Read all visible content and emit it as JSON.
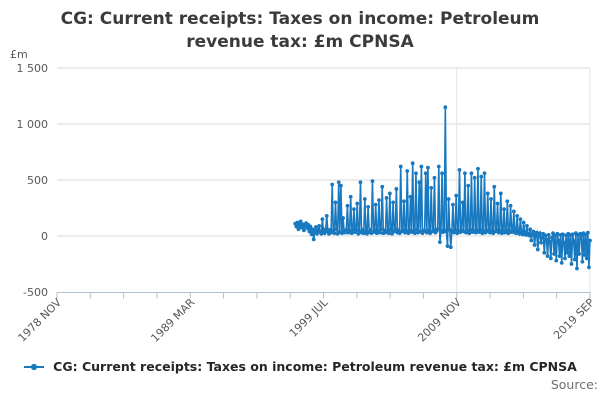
{
  "title": "CG: Current receipts: Taxes on income: Petroleum revenue tax: £m CPNSA",
  "unit_label": "£m",
  "legend": {
    "label": "CG: Current receipts: Taxes on income: Petroleum revenue tax: £m CPNSA"
  },
  "source_label": "Source:",
  "colors": {
    "series": "#1879c0",
    "grid": "#d9d9d9",
    "vgrid": "#e4e4e4",
    "axis": "#b2c0ce",
    "text": "#3b3b3b",
    "tick_text": "#57585a"
  },
  "chart_data": {
    "type": "line",
    "title": "CG: Current receipts: Taxes on income: Petroleum revenue tax: £m CPNSA",
    "xlabel": "",
    "ylabel": "£m",
    "ylim": [
      -500,
      1500
    ],
    "grid": "horizontal",
    "legend_position": "bottom",
    "marker": "circle",
    "yticks": [
      {
        "value": 1500,
        "label": "1 500"
      },
      {
        "value": 1000,
        "label": "1 000"
      },
      {
        "value": 500,
        "label": "500"
      },
      {
        "value": 0,
        "label": "0"
      },
      {
        "value": -500,
        "label": "-500"
      }
    ],
    "axis_start_month": "1978-11",
    "axis_end_month": "2019-09",
    "xticklabels": [
      "1978 NOV",
      "1989 MAR",
      "1999 JUL",
      "2009 NOV",
      "2019 SEP"
    ],
    "minor_ticks_between_labels": 3,
    "vgrid_ticks": [
      12,
      16
    ],
    "series": [
      {
        "name": "CG: Current receipts: Taxes on income: Petroleum revenue tax: £m CPNSA",
        "start_month": "1997-02",
        "frequency": "monthly",
        "values": [
          110,
          85,
          120,
          60,
          100,
          130,
          75,
          105,
          50,
          95,
          115,
          70,
          100,
          40,
          85,
          15,
          60,
          -30,
          45,
          80,
          20,
          55,
          90,
          35,
          20,
          150,
          45,
          25,
          60,
          180,
          40,
          20,
          55,
          30,
          460,
          45,
          25,
          300,
          60,
          20,
          480,
          35,
          450,
          25,
          160,
          40,
          30,
          55,
          270,
          30,
          45,
          350,
          25,
          60,
          240,
          35,
          50,
          290,
          20,
          40,
          480,
          30,
          55,
          25,
          330,
          45,
          20,
          260,
          35,
          55,
          25,
          490,
          35,
          50,
          280,
          25,
          45,
          320,
          30,
          60,
          440,
          25,
          50,
          30,
          340,
          45,
          25,
          380,
          55,
          20,
          300,
          40,
          60,
          420,
          30,
          50,
          25,
          620,
          40,
          55,
          310,
          30,
          45,
          580,
          25,
          50,
          350,
          35,
          650,
          45,
          25,
          560,
          55,
          30,
          480,
          40,
          620,
          25,
          50,
          45,
          560,
          30,
          610,
          50,
          25,
          430,
          40,
          55,
          520,
          30,
          45,
          60,
          620,
          -55,
          45,
          560,
          35,
          50,
          1150,
          40,
          -90,
          330,
          55,
          -100,
          45,
          280,
          30,
          55,
          360,
          25,
          45,
          590,
          35,
          50,
          300,
          40,
          560,
          30,
          50,
          450,
          25,
          55,
          560,
          35,
          45,
          520,
          30,
          50,
          600,
          35,
          55,
          530,
          25,
          45,
          560,
          30,
          50,
          380,
          40,
          30,
          330,
          50,
          25,
          440,
          40,
          55,
          290,
          30,
          45,
          380,
          25,
          45,
          240,
          30,
          50,
          310,
          25,
          40,
          270,
          35,
          55,
          220,
          30,
          25,
          180,
          40,
          20,
          150,
          35,
          15,
          120,
          30,
          10,
          90,
          20,
          5,
          60,
          -40,
          15,
          40,
          -80,
          10,
          30,
          -120,
          5,
          25,
          -60,
          -10,
          20,
          -150,
          5,
          -30,
          -180,
          10,
          -50,
          -200,
          -15,
          25,
          -160,
          5,
          -220,
          20,
          -40,
          -180,
          10,
          -240,
          15,
          -60,
          -200,
          5,
          -150,
          20,
          -180,
          10,
          -250,
          15,
          -45,
          -210,
          25,
          -290,
          10,
          -160,
          20,
          15,
          -230,
          25,
          -170,
          10,
          -200,
          30,
          -280,
          -40
        ]
      }
    ]
  }
}
